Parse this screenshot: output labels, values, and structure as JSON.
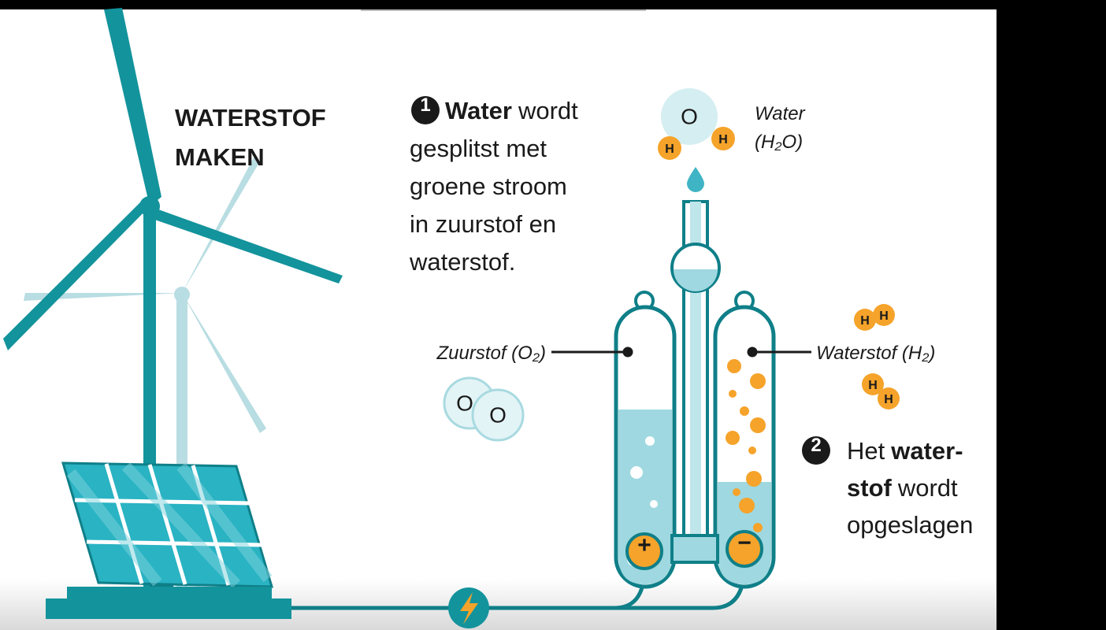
{
  "title": [
    "WATERSTOF",
    "MAKEN"
  ],
  "steps": [
    {
      "number": "1",
      "lines": [
        [
          {
            "text": "Water",
            "bold": true
          },
          {
            "text": "wordt"
          }
        ],
        [
          {
            "text": "gesplitst met"
          }
        ],
        [
          {
            "text": "groene stroom"
          }
        ],
        [
          {
            "text": "in zuurstof en"
          }
        ],
        [
          {
            "text": "waterstof."
          }
        ]
      ]
    },
    {
      "number": "2",
      "lines": [
        [
          {
            "text": "Het"
          },
          {
            "text": "water-",
            "bold": true
          }
        ],
        [
          {
            "text": "stof",
            "bold": true
          },
          {
            "text": "wordt"
          }
        ],
        [
          {
            "text": "opgeslagen"
          }
        ]
      ]
    }
  ],
  "water_label": {
    "name": "Water",
    "formula": "(H₂O)"
  },
  "water_molecule": {
    "oxygen": "O",
    "hydrogen": [
      "H",
      "H"
    ]
  },
  "oxygen_label": "Zuurstof (O₂)",
  "oxygen_molecule": [
    "O",
    "O"
  ],
  "hydrogen_label": "Waterstof (H₂)",
  "hydrogen_molecules": [
    [
      "H",
      "H"
    ],
    [
      "H",
      "H"
    ]
  ],
  "electrodes": [
    "+",
    "−"
  ]
}
